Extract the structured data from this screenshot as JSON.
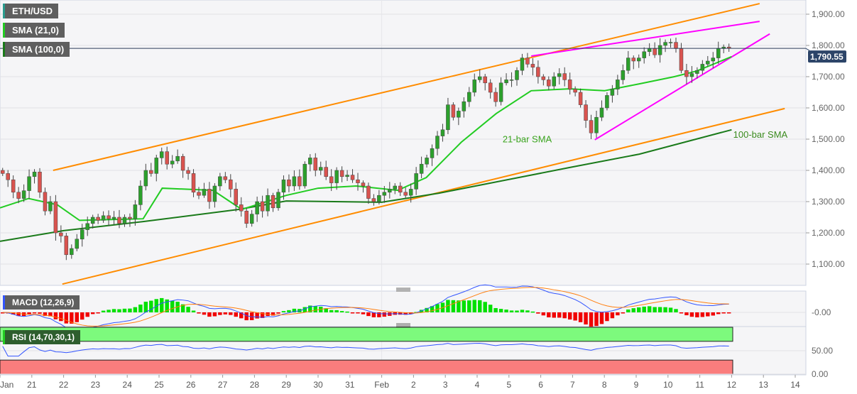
{
  "chart_data": {
    "type": "candlestick",
    "symbol": "ETH/USD",
    "indicators": {
      "sma21": "SMA (21,0)",
      "sma100": "SMA (100,0)",
      "macd": "MACD (12,26,9)",
      "rsi": "RSI (14,70,30,1)"
    },
    "last_price": "1,790.55",
    "y_ticks": [
      "1,900.00",
      "1,800.00",
      "1,700.00",
      "1,600.00",
      "1,500.00",
      "1,400.00",
      "1,300.00",
      "1,200.00",
      "1,100.00"
    ],
    "y_tick_values": [
      1900,
      1800,
      1700,
      1600,
      1500,
      1400,
      1300,
      1200,
      1100
    ],
    "macd_ticks": [
      "-0.00"
    ],
    "rsi_ticks": [
      "50.00",
      "0.00"
    ],
    "rsi_levels": [
      70,
      30
    ],
    "x_labels": [
      "Jan",
      "21",
      "22",
      "23",
      "24",
      "25",
      "26",
      "27",
      "28",
      "29",
      "30",
      "31",
      "Feb",
      "2",
      "3",
      "4",
      "5",
      "6",
      "7",
      "8",
      "9",
      "10",
      "11",
      "12",
      "13",
      "14"
    ],
    "candles_per_day": 6,
    "closes": [
      1390,
      1370,
      1330,
      1310,
      1335,
      1380,
      1395,
      1330,
      1270,
      1300,
      1200,
      1190,
      1130,
      1150,
      1180,
      1210,
      1230,
      1250,
      1240,
      1255,
      1245,
      1250,
      1230,
      1250,
      1245,
      1290,
      1350,
      1400,
      1390,
      1440,
      1460,
      1420,
      1430,
      1445,
      1400,
      1390,
      1330,
      1320,
      1340,
      1300,
      1350,
      1380,
      1370,
      1340,
      1290,
      1270,
      1230,
      1260,
      1300,
      1270,
      1320,
      1280,
      1330,
      1370,
      1350,
      1380,
      1350,
      1420,
      1440,
      1400,
      1410,
      1380,
      1360,
      1400,
      1380,
      1385,
      1370,
      1360,
      1350,
      1310,
      1300,
      1320,
      1330,
      1340,
      1350,
      1330,
      1320,
      1340,
      1390,
      1420,
      1440,
      1470,
      1510,
      1530,
      1610,
      1570,
      1590,
      1620,
      1650,
      1690,
      1700,
      1680,
      1650,
      1620,
      1680,
      1690,
      1690,
      1720,
      1760,
      1740,
      1730,
      1700,
      1690,
      1670,
      1700,
      1710,
      1690,
      1660,
      1650,
      1610,
      1560,
      1520,
      1570,
      1600,
      1640,
      1660,
      1690,
      1720,
      1760,
      1750,
      1760,
      1780,
      1790,
      1770,
      1800,
      1810,
      1810,
      1790,
      1720,
      1700,
      1710,
      1720,
      1740,
      1750,
      1760,
      1790,
      1795,
      1790.55
    ],
    "sma21": [
      [
        0,
        1280
      ],
      [
        0.9,
        1310
      ],
      [
        1.8,
        1290
      ],
      [
        2.5,
        1240
      ],
      [
        4.5,
        1245
      ],
      [
        5.1,
        1343
      ],
      [
        6.7,
        1336
      ],
      [
        7.6,
        1275
      ],
      [
        9,
        1320
      ],
      [
        10,
        1343
      ],
      [
        11.2,
        1350
      ],
      [
        12.5,
        1336
      ],
      [
        13.4,
        1377
      ],
      [
        14.5,
        1490
      ],
      [
        15.6,
        1582
      ],
      [
        16.7,
        1655
      ],
      [
        17.9,
        1661
      ],
      [
        19,
        1655
      ],
      [
        20.1,
        1677
      ],
      [
        21.2,
        1700
      ],
      [
        21.9,
        1718
      ],
      [
        23,
        1764
      ]
    ],
    "sma100": [
      [
        0,
        1173
      ],
      [
        2,
        1207
      ],
      [
        4.5,
        1236
      ],
      [
        7.5,
        1275
      ],
      [
        9,
        1302
      ],
      [
        12,
        1298
      ],
      [
        13.8,
        1327
      ],
      [
        17.9,
        1409
      ],
      [
        20.1,
        1452
      ],
      [
        23,
        1530
      ]
    ],
    "trendlines": [
      {
        "name": "channel-upper",
        "color": "#ff8c00",
        "from": [
          1.67,
          1400
        ],
        "to": [
          23.88,
          1934
        ]
      },
      {
        "name": "channel-lower",
        "color": "#ff8c00",
        "from": [
          1.96,
          1036
        ],
        "to": [
          24.67,
          1598
        ]
      },
      {
        "name": "wedge-upper",
        "color": "#ff00ff",
        "from": [
          16.7,
          1766
        ],
        "to": [
          23.88,
          1877
        ]
      },
      {
        "name": "wedge-lower",
        "color": "#ff00ff",
        "from": [
          18.7,
          1498
        ],
        "to": [
          24.2,
          1837
        ]
      }
    ],
    "annotations": [
      {
        "text": "21-bar SMA",
        "at": [
          15.8,
          1490
        ],
        "color": "#3aa41e"
      },
      {
        "text": "100-bar SMA",
        "at": [
          23.05,
          1505
        ],
        "color": "#3a8a1e"
      }
    ],
    "colors": {
      "up": "#2ca02c",
      "down": "#d9534f",
      "sma21": "#22cc22",
      "sma100": "#1a7a1a",
      "macd": "#3355ff",
      "signal": "#ff7f0e",
      "rsi": "#3355ff"
    }
  }
}
